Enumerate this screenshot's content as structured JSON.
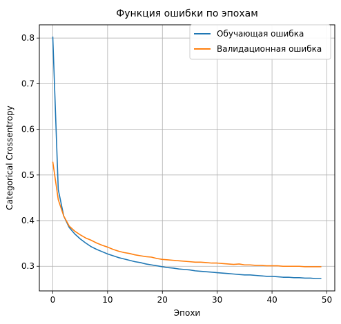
{
  "chart_data": {
    "type": "line",
    "title": "Функция ошибки по эпохам",
    "xlabel": "Эпохи",
    "ylabel": "Categorical Crossentropy",
    "xlim": [
      -2.45,
      51.45
    ],
    "ylim": [
      0.246,
      0.829
    ],
    "xticks": [
      0,
      10,
      20,
      30,
      40,
      50
    ],
    "yticks": [
      0.3,
      0.4,
      0.5,
      0.6,
      0.7,
      0.8
    ],
    "xtick_labels": [
      "0",
      "10",
      "20",
      "30",
      "40",
      "50"
    ],
    "ytick_labels": [
      "0.3",
      "0.4",
      "0.5",
      "0.6",
      "0.7",
      "0.8"
    ],
    "grid": true,
    "legend_position": "top-right",
    "x": [
      0,
      1,
      2,
      3,
      4,
      5,
      6,
      7,
      8,
      9,
      10,
      11,
      12,
      13,
      14,
      15,
      16,
      17,
      18,
      19,
      20,
      21,
      22,
      23,
      24,
      25,
      26,
      27,
      28,
      29,
      30,
      31,
      32,
      33,
      34,
      35,
      36,
      37,
      38,
      39,
      40,
      41,
      42,
      43,
      44,
      45,
      46,
      47,
      48,
      49
    ],
    "series": [
      {
        "name": "Обучающая ошибка",
        "color": "#1f77b4",
        "values": [
          0.803,
          0.468,
          0.41,
          0.385,
          0.371,
          0.36,
          0.351,
          0.343,
          0.337,
          0.332,
          0.327,
          0.323,
          0.319,
          0.316,
          0.313,
          0.31,
          0.308,
          0.305,
          0.303,
          0.301,
          0.299,
          0.297,
          0.296,
          0.294,
          0.293,
          0.292,
          0.29,
          0.289,
          0.288,
          0.287,
          0.286,
          0.285,
          0.284,
          0.283,
          0.282,
          0.281,
          0.281,
          0.28,
          0.279,
          0.278,
          0.278,
          0.277,
          0.276,
          0.276,
          0.275,
          0.275,
          0.274,
          0.274,
          0.273,
          0.273
        ]
      },
      {
        "name": "Валидационная ошибка",
        "color": "#ff7f0e",
        "values": [
          0.529,
          0.446,
          0.41,
          0.388,
          0.377,
          0.369,
          0.362,
          0.357,
          0.351,
          0.346,
          0.342,
          0.337,
          0.333,
          0.33,
          0.328,
          0.325,
          0.323,
          0.321,
          0.32,
          0.317,
          0.315,
          0.314,
          0.313,
          0.312,
          0.311,
          0.31,
          0.309,
          0.309,
          0.308,
          0.307,
          0.307,
          0.306,
          0.305,
          0.304,
          0.305,
          0.303,
          0.303,
          0.302,
          0.302,
          0.301,
          0.301,
          0.301,
          0.3,
          0.3,
          0.3,
          0.3,
          0.299,
          0.299,
          0.299,
          0.299
        ]
      }
    ]
  }
}
